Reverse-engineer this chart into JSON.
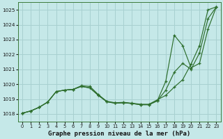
{
  "title": "Graphe pression niveau de la mer (hPa)",
  "bg_color": "#c5e8e8",
  "grid_color": "#a8d0d0",
  "line_color": "#2d6e2d",
  "xlim": [
    -0.5,
    23.5
  ],
  "ylim": [
    1017.5,
    1025.5
  ],
  "yticks": [
    1018,
    1019,
    1020,
    1021,
    1022,
    1023,
    1024,
    1025
  ],
  "xticks": [
    0,
    1,
    2,
    3,
    4,
    5,
    6,
    7,
    8,
    9,
    10,
    11,
    12,
    13,
    14,
    15,
    16,
    17,
    18,
    19,
    20,
    21,
    22,
    23
  ],
  "line1": [
    1018.05,
    1018.2,
    1018.45,
    1018.8,
    1019.5,
    1019.6,
    1019.65,
    1019.9,
    1019.85,
    1019.3,
    1018.85,
    1018.75,
    1018.78,
    1018.72,
    1018.65,
    1018.65,
    1018.95,
    1019.25,
    1019.8,
    1020.3,
    1021.35,
    1022.6,
    1025.0,
    1025.2
  ],
  "line2": [
    1018.05,
    1018.2,
    1018.45,
    1018.8,
    1019.5,
    1019.6,
    1019.65,
    1019.85,
    1019.75,
    1019.25,
    1018.82,
    1018.72,
    1018.75,
    1018.7,
    1018.62,
    1018.62,
    1018.88,
    1019.6,
    1020.8,
    1021.4,
    1021.0,
    1022.1,
    1024.4,
    1025.2
  ],
  "line3": [
    1018.05,
    1018.2,
    1018.45,
    1018.8,
    1019.5,
    1019.6,
    1019.65,
    1019.85,
    1019.75,
    1019.25,
    1018.82,
    1018.72,
    1018.75,
    1018.7,
    1018.62,
    1018.62,
    1018.88,
    1020.2,
    1023.3,
    1022.6,
    1021.1,
    1021.4,
    1023.7,
    1025.2
  ]
}
